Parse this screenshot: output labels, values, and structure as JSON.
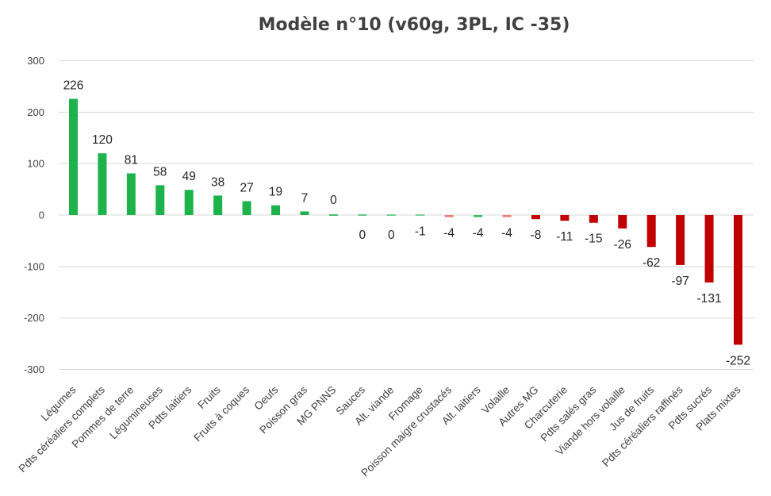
{
  "chart_data": {
    "type": "bar",
    "title": "Modèle n°10 (v60g, 3PL, IC -35)",
    "xlabel": "",
    "ylabel": "",
    "ylim": [
      -300,
      300
    ],
    "yticks": [
      300,
      200,
      100,
      0,
      -100,
      -200,
      -300
    ],
    "grid": true,
    "legend": "none",
    "categories": [
      "Légumes",
      "Pdts céréaliers complets",
      "Pommes de terre",
      "Légumineuses",
      "Pdts laitiers",
      "Fruits",
      "Fruits à coques",
      "Oeufs",
      "Poisson gras",
      "MG PNNS",
      "Sauces",
      "Alt. viande",
      "Fromage",
      "Poisson maigre crustacés",
      "Alt. laitiers",
      "Volaille",
      "Autres MG",
      "Charcuterie",
      "Pdts salés gras",
      "Viande hors volaille",
      "Jus de fruits",
      "Pdts céréaliers raffinés",
      "Pdts sucrés",
      "Plats mixtes"
    ],
    "values": [
      226,
      120,
      81,
      58,
      49,
      38,
      27,
      19,
      7,
      0,
      0,
      0,
      -1,
      -4,
      -4,
      -4,
      -8,
      -11,
      -15,
      -26,
      -62,
      -97,
      -131,
      -252
    ],
    "colors": [
      "#1cb34a",
      "#1cb34a",
      "#1cb34a",
      "#1cb34a",
      "#1cb34a",
      "#1cb34a",
      "#1cb34a",
      "#1cb34a",
      "#1cb34a",
      "#1cb34a",
      "#3dbb6a",
      "#4cc27a",
      "#55c483",
      "#ef7a78",
      "#3dbb6a",
      "#ef7a78",
      "#c00000",
      "#c00000",
      "#c00000",
      "#c00000",
      "#c00000",
      "#c00000",
      "#c00000",
      "#c00000"
    ],
    "data_labels": [
      "226",
      "120",
      "81",
      "58",
      "49",
      "38",
      "27",
      "19",
      "7",
      "0",
      "0",
      "0",
      "-1",
      "-4",
      "-4",
      "-4",
      "-8",
      "-11",
      "-15",
      "-26",
      "-62",
      "-97",
      "-131",
      "-252"
    ]
  }
}
